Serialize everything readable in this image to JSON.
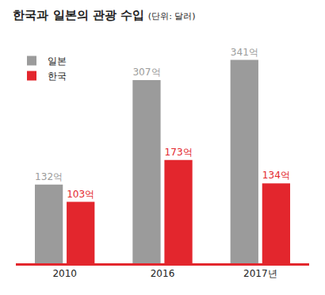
{
  "chart_data": {
    "type": "bar",
    "title": "한국과 일본의 관광 수입",
    "subtitle": "(단위: 달러)",
    "categories": [
      "2010",
      "2016",
      "2017년"
    ],
    "series": [
      {
        "name": "일본",
        "color": "#9b9b9b",
        "values": [
          132,
          307,
          341
        ],
        "value_labels": [
          "132억",
          "307억",
          "341억"
        ]
      },
      {
        "name": "한국",
        "color": "#e3262d",
        "values": [
          103,
          173,
          134
        ],
        "value_labels": [
          "103억",
          "173억",
          "134억"
        ]
      }
    ],
    "data_labels": true,
    "legend": "top-left",
    "tick_labels": "x",
    "grid": false
  }
}
